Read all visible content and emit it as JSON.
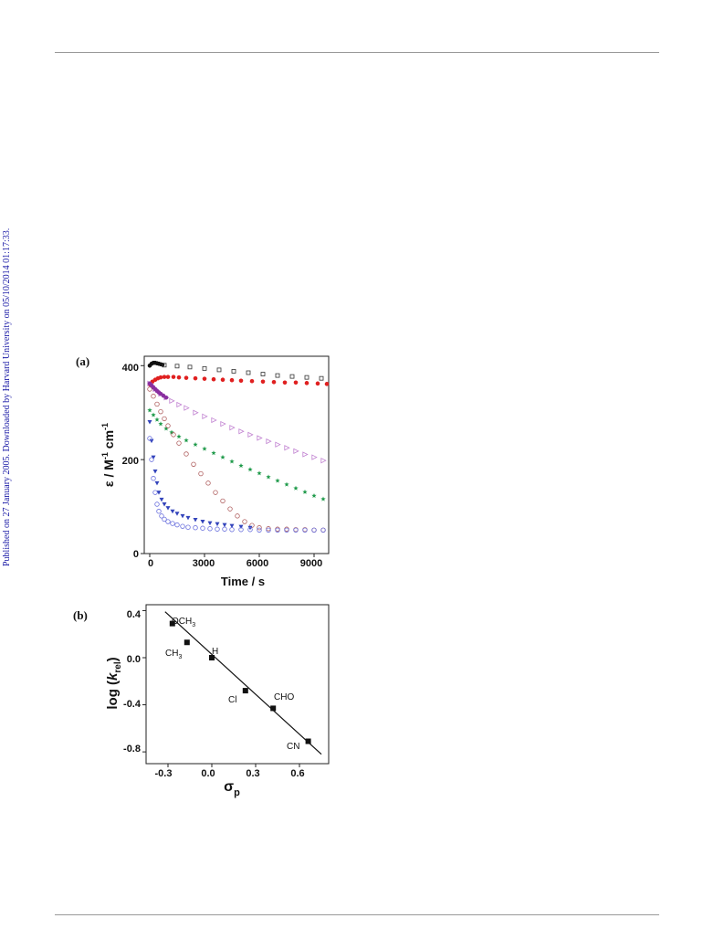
{
  "side_note": "Published on 27 January 2005. Downloaded by Harvard University on 05/10/2014 01:17:33.",
  "panels": {
    "a": {
      "label": "(a)",
      "ylabel_main": "ε / M",
      "ylabel_exp1": "-1",
      "ylabel_mid": " cm",
      "ylabel_exp2": "-1",
      "xlabel": "Time / s",
      "x_ticks": [
        "0",
        "3000",
        "6000",
        "9000"
      ],
      "y_ticks": [
        "0",
        "200",
        "400"
      ]
    },
    "b": {
      "label": "(b)",
      "ylabel_pre": "log (",
      "ylabel_k": "k",
      "ylabel_sub": "rel",
      "ylabel_post": ")",
      "xlabel_main": "σ",
      "xlabel_sub": "p",
      "x_ticks": [
        "-0.3",
        "0.0",
        "0.3",
        "0.6"
      ],
      "y_ticks": [
        "0.4",
        "0.0",
        "-0.4",
        "-0.8"
      ],
      "point_labels": {
        "och3": "OCH",
        "och3_sub": "3",
        "ch3": "CH",
        "ch3_sub": "3",
        "h": "H",
        "cl": "Cl",
        "cho": "CHO",
        "cn": "CN"
      }
    }
  },
  "chart_data": [
    {
      "type": "scatter",
      "xlabel": "Time / s",
      "ylabel": "ε / M-1 cm-1",
      "xlim": [
        -300,
        9800
      ],
      "ylim": [
        0,
        420
      ],
      "series": [
        {
          "marker": "filled-circle",
          "color": "#111111",
          "x": [
            0,
            100,
            200,
            300,
            400,
            500,
            600,
            700
          ],
          "y": [
            400,
            404,
            406,
            406,
            405,
            404,
            403,
            402
          ]
        },
        {
          "marker": "open-square",
          "color": "#333333",
          "x": [
            800,
            1500,
            2200,
            3000,
            3800,
            4600,
            5400,
            6200,
            7000,
            7800,
            8600,
            9400
          ],
          "y": [
            401,
            399,
            397,
            394,
            391,
            388,
            385,
            382,
            379,
            377,
            375,
            373
          ]
        },
        {
          "marker": "filled-circle",
          "color": "#e02020",
          "x": [
            0,
            150,
            300,
            450,
            600,
            800,
            1000,
            1300,
            1600,
            2000,
            2500,
            3000,
            3500,
            4000,
            4500,
            5000,
            5600,
            6200,
            6800,
            7400,
            8000,
            8600,
            9200,
            9700
          ],
          "y": [
            360,
            366,
            370,
            373,
            375,
            376,
            376,
            376,
            375,
            374,
            373,
            372,
            371,
            370,
            369,
            368,
            367,
            366,
            365,
            364,
            364,
            363,
            362,
            361
          ]
        },
        {
          "marker": "open-triangle-right",
          "color": "#c080d0",
          "x": [
            0,
            300,
            600,
            900,
            1200,
            1600,
            2000,
            2500,
            3000,
            3500,
            4000,
            4500,
            5000,
            5500,
            6000,
            6500,
            7000,
            7500,
            8000,
            8500,
            9000,
            9500
          ],
          "y": [
            362,
            350,
            340,
            332,
            325,
            317,
            310,
            300,
            292,
            284,
            276,
            268,
            260,
            253,
            246,
            239,
            232,
            225,
            218,
            211,
            205,
            198
          ]
        },
        {
          "marker": "star",
          "color": "#1f9a4a",
          "x": [
            0,
            200,
            400,
            600,
            900,
            1200,
            1600,
            2000,
            2500,
            3000,
            3500,
            4000,
            4500,
            5000,
            5500,
            6000,
            6500,
            7000,
            7500,
            8000,
            8500,
            9000,
            9500
          ],
          "y": [
            305,
            295,
            285,
            276,
            266,
            258,
            249,
            241,
            232,
            223,
            214,
            205,
            196,
            187,
            179,
            171,
            163,
            155,
            147,
            139,
            131,
            123,
            116
          ]
        },
        {
          "marker": "open-circle",
          "color": "#b06060",
          "x": [
            0,
            200,
            400,
            600,
            800,
            1000,
            1300,
            1600,
            2000,
            2400,
            2800,
            3200,
            3600,
            4000,
            4400,
            4800,
            5200,
            5600,
            6000,
            6500,
            7000,
            7500,
            8000,
            8500,
            9000,
            9500
          ],
          "y": [
            350,
            335,
            318,
            302,
            287,
            272,
            253,
            235,
            212,
            190,
            170,
            150,
            130,
            112,
            95,
            80,
            68,
            60,
            55,
            53,
            52,
            52,
            51,
            51,
            50,
            50
          ]
        },
        {
          "marker": "filled-triangle-down",
          "color": "#3344bb",
          "x": [
            0,
            100,
            200,
            300,
            400,
            500,
            650,
            800,
            1000,
            1250,
            1500,
            1800,
            2100,
            2500,
            2900,
            3300,
            3700,
            4100,
            4500,
            5000,
            5500
          ],
          "y": [
            280,
            240,
            205,
            175,
            150,
            130,
            115,
            105,
            97,
            90,
            85,
            80,
            76,
            72,
            68,
            65,
            63,
            61,
            59,
            57,
            55
          ]
        },
        {
          "marker": "open-circle",
          "color": "#6a70dd",
          "x": [
            0,
            100,
            200,
            300,
            400,
            500,
            650,
            800,
            1000,
            1250,
            1500,
            1800,
            2100,
            2500,
            2900,
            3300,
            3700,
            4100,
            4500,
            5000,
            5500,
            6000,
            6500,
            7000,
            7500,
            8000,
            8500,
            9000,
            9500
          ],
          "y": [
            245,
            200,
            160,
            130,
            105,
            90,
            80,
            73,
            68,
            64,
            61,
            58,
            56,
            55,
            54,
            53,
            52,
            52,
            51,
            51,
            51,
            50,
            50,
            50,
            50,
            50,
            50,
            50,
            50
          ]
        },
        {
          "marker": "filled-circle",
          "color": "#8a2fa0",
          "x": [
            0,
            100,
            200,
            300,
            400,
            500,
            600,
            750,
            900
          ],
          "y": [
            362,
            358,
            354,
            350,
            346,
            343,
            340,
            336,
            332
          ]
        }
      ]
    },
    {
      "type": "scatter",
      "xlabel": "σp",
      "ylabel": "log (krel)",
      "xlim": [
        -0.45,
        0.8
      ],
      "ylim": [
        -0.9,
        0.45
      ],
      "points": [
        {
          "label": "OCH3",
          "x": -0.27,
          "y": 0.29
        },
        {
          "label": "CH3",
          "x": -0.17,
          "y": 0.13
        },
        {
          "label": "H",
          "x": 0.0,
          "y": 0.0
        },
        {
          "label": "Cl",
          "x": 0.23,
          "y": -0.28
        },
        {
          "label": "CHO",
          "x": 0.42,
          "y": -0.43
        },
        {
          "label": "CN",
          "x": 0.66,
          "y": -0.71
        }
      ],
      "fit_line": {
        "x": [
          -0.32,
          0.75
        ],
        "y": [
          0.39,
          -0.82
        ]
      }
    }
  ]
}
